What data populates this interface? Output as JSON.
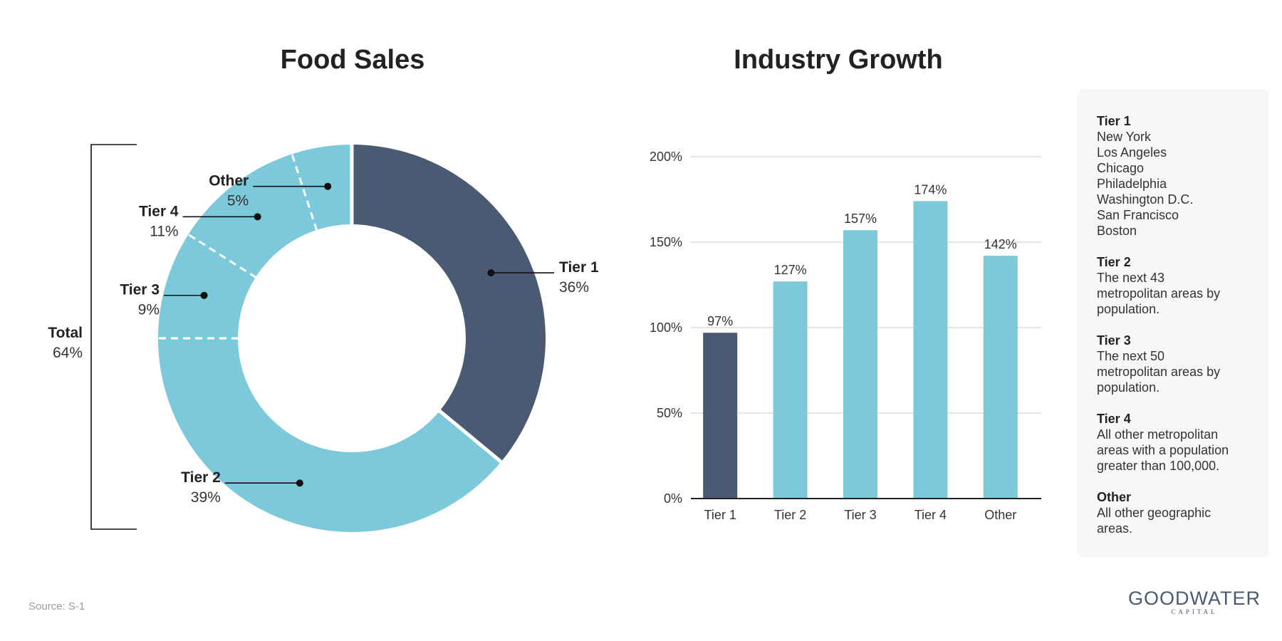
{
  "colors": {
    "dark": "#4a5a73",
    "light": "#7cc9dc",
    "grid": "#d4d4d4",
    "axis": "#222222"
  },
  "source": "Source: S-1",
  "logo": {
    "main": "GOODWATER",
    "sub": "CAPITAL"
  },
  "chart_data": [
    {
      "type": "pie",
      "variant": "donut",
      "title": "Food Sales",
      "slices": [
        {
          "name": "Tier 1",
          "value": 36,
          "label": "36%",
          "color": "#4a5a73"
        },
        {
          "name": "Tier 2",
          "value": 39,
          "label": "39%",
          "color": "#7cc9dc"
        },
        {
          "name": "Tier 3",
          "value": 9,
          "label": "9%",
          "color": "#7cc9dc"
        },
        {
          "name": "Tier 4",
          "value": 11,
          "label": "11%",
          "color": "#7cc9dc"
        },
        {
          "name": "Other",
          "value": 5,
          "label": "5%",
          "color": "#7cc9dc"
        }
      ],
      "total": {
        "name": "Total",
        "label": "64%"
      }
    },
    {
      "type": "bar",
      "title": "Industry Growth",
      "categories": [
        "Tier 1",
        "Tier 2",
        "Tier 3",
        "Tier 4",
        "Other"
      ],
      "values": [
        97,
        127,
        157,
        174,
        142
      ],
      "value_labels": [
        "97%",
        "127%",
        "157%",
        "174%",
        "142%"
      ],
      "bar_colors": [
        "#4a5a73",
        "#7cc9dc",
        "#7cc9dc",
        "#7cc9dc",
        "#7cc9dc"
      ],
      "yticks": [
        "0%",
        "50%",
        "100%",
        "150%",
        "200%"
      ],
      "ylim": [
        0,
        200
      ],
      "grid": true
    }
  ],
  "legend": [
    {
      "title": "Tier 1",
      "lines": [
        "New York",
        "Los Angeles",
        "Chicago",
        "Philadelphia",
        "Washington D.C.",
        "San Francisco",
        "Boston"
      ]
    },
    {
      "title": "Tier 2",
      "lines": [
        "The next 43",
        "metropolitan areas by",
        "population."
      ]
    },
    {
      "title": "Tier 3",
      "lines": [
        "The next 50",
        "metropolitan areas by",
        "population."
      ]
    },
    {
      "title": "Tier 4",
      "lines": [
        "All other metropolitan",
        "areas with a population",
        "greater than 100,000."
      ]
    },
    {
      "title": "Other",
      "lines": [
        "All other geographic",
        "areas."
      ]
    }
  ]
}
